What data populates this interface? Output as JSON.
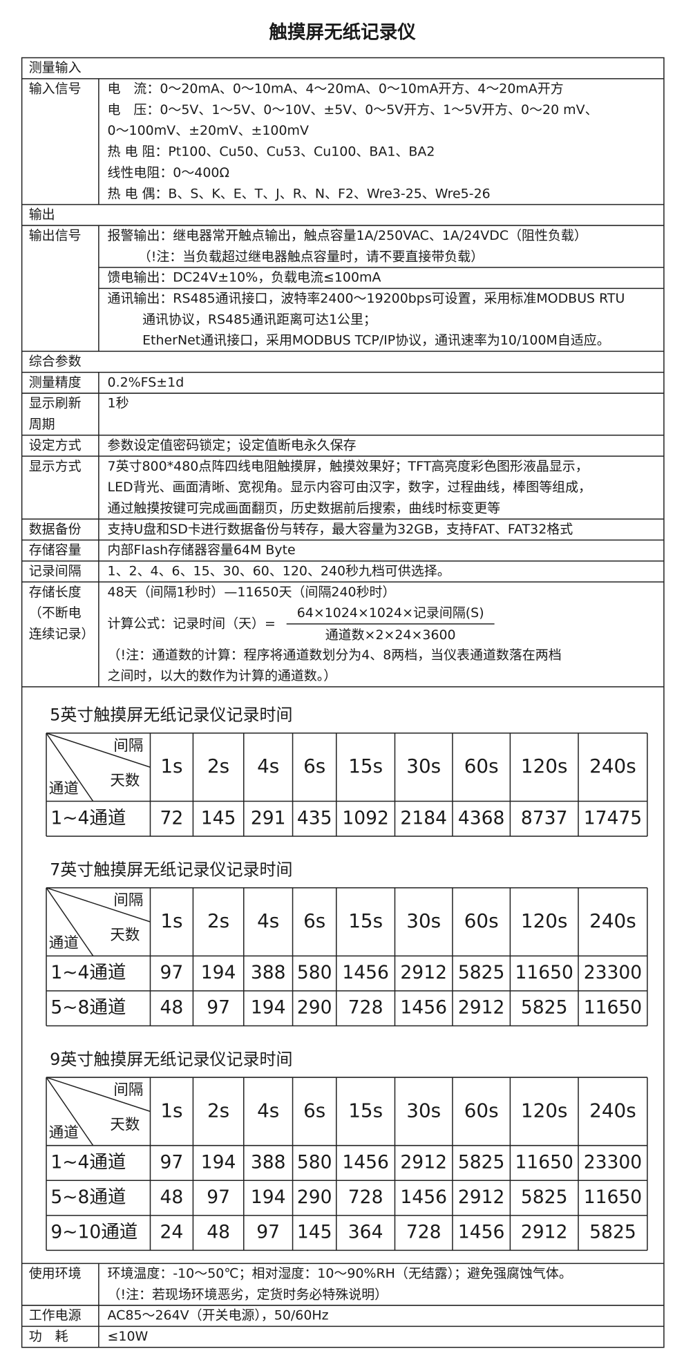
{
  "title": "触摸屏无纸记录仪",
  "spec_top": [
    {
      "section": "测量输入"
    },
    {
      "label": [
        "输入信号"
      ],
      "groups": [
        [
          "电　流：0～20mA、0～10mA、4～20mA、0～10mA开方、4～20mA开方",
          "电　压：0～5V、1～5V、0～10V、±5V、0～5V开方、1～5V开方、0～20 mV、",
          "0～100mV、±20mV、±100mV",
          "热 电 阻：Pt100、Cu50、Cu53、Cu100、BA1、BA2",
          "线性电阻：0～400Ω",
          "热 电 偶：B、S、K、E、T、J、R、N、F2、Wre3-25、Wre5-26"
        ]
      ]
    },
    {
      "section": "输出"
    },
    {
      "label": [
        "输出信号"
      ],
      "groups": [
        [
          "报警输出：继电器常开触点输出，触点容量1A/250VAC、1A/24VDC（阻性负载）",
          "（!注：当负载超过继电器触点容量时，请不要直接带负载）"
        ],
        [
          "馈电输出：DC24V±10%，负载电流≤100mA"
        ],
        [
          "通讯输出：RS485通讯接口，波特率2400～19200bps可设置，采用标准MODBUS RTU",
          "通讯协议，RS485通讯距离可达1公里；",
          "EtherNet通讯接口，采用MODBUS TCP/IP协议，通讯速率为10/100M自适应。"
        ]
      ]
    },
    {
      "section": "综合参数"
    },
    {
      "label": [
        "测量精度"
      ],
      "groups": [
        [
          "0.2%FS±1d"
        ]
      ]
    },
    {
      "label": [
        "显示刷新",
        "周期"
      ],
      "groups": [
        [
          "1秒"
        ]
      ]
    },
    {
      "label": [
        "设定方式"
      ],
      "groups": [
        [
          "参数设定值密码锁定；设定值断电永久保存"
        ]
      ]
    },
    {
      "label": [
        "显示方式"
      ],
      "groups": [
        [
          "7英寸800*480点阵四线电阻触摸屏，触摸效果好；TFT高亮度彩色图形液晶显示，",
          "LED背光、画面清晰、宽视角。显示内容可由汉字，数字，过程曲线，棒图等组成，",
          "通过触摸按键可完成画面翻页，历史数据前后搜索，曲线时标变更等"
        ]
      ]
    },
    {
      "label": [
        "数据备份"
      ],
      "groups": [
        [
          "支持U盘和SD卡进行数据备份与转存，最大容量为32GB，支持FAT、FAT32格式"
        ]
      ]
    },
    {
      "label": [
        "存储容量"
      ],
      "groups": [
        [
          "内部Flash存储器容量64M Byte"
        ]
      ]
    },
    {
      "label": [
        "记录间隔"
      ],
      "groups": [
        [
          "1、2、4、6、15、30、60、120、240秒九档可供选择。"
        ]
      ]
    },
    {
      "label": [
        "存储长度",
        "（不断电",
        "连续记录）"
      ],
      "groups": [
        [
          "48天（间隔1秒时）—11650天（间隔240秒时）",
          {
            "label": "计算公式：记录时间（天）=",
            "numerator": "64×1024×1024×记录间隔(S)",
            "denominator": "通道数×2×24×3600"
          },
          "（!注：通道数的计算：程序将通道数划分为4、8两档，当仪表通道数落在两档",
          "之间时，以大的数作为计算的通道数。）"
        ]
      ]
    }
  ],
  "tables": [
    {
      "title": "5英寸触摸屏无纸记录仪记录时间",
      "corner_top": "间隔",
      "corner_middle": "天数",
      "corner_bottom": "通道",
      "headers": [
        "1s",
        "2s",
        "4s",
        "6s",
        "15s",
        "30s",
        "60s",
        "120s",
        "240s"
      ],
      "rows": [
        {
          "label": "1~4通道",
          "values": [
            72,
            145,
            291,
            435,
            1092,
            2184,
            4368,
            8737,
            17475
          ]
        }
      ]
    },
    {
      "title": "7英寸触摸屏无纸记录仪记录时间",
      "corner_top": "间隔",
      "corner_middle": "天数",
      "corner_bottom": "通道",
      "headers": [
        "1s",
        "2s",
        "4s",
        "6s",
        "15s",
        "30s",
        "60s",
        "120s",
        "240s"
      ],
      "rows": [
        {
          "label": "1~4通道",
          "values": [
            97,
            194,
            388,
            580,
            1456,
            2912,
            5825,
            11650,
            23300
          ]
        },
        {
          "label": "5~8通道",
          "values": [
            48,
            97,
            194,
            290,
            728,
            1456,
            2912,
            5825,
            11650
          ]
        }
      ]
    },
    {
      "title": "9英寸触摸屏无纸记录仪记录时间",
      "corner_top": "间隔",
      "corner_middle": "天数",
      "corner_bottom": "通道",
      "headers": [
        "1s",
        "2s",
        "4s",
        "6s",
        "15s",
        "30s",
        "60s",
        "120s",
        "240s"
      ],
      "rows": [
        {
          "label": "1~4通道",
          "values": [
            97,
            194,
            388,
            580,
            1456,
            2912,
            5825,
            11650,
            23300
          ]
        },
        {
          "label": "5~8通道",
          "values": [
            48,
            97,
            194,
            290,
            728,
            1456,
            2912,
            5825,
            11650
          ]
        },
        {
          "label": "9~10通道",
          "values": [
            24,
            48,
            97,
            145,
            364,
            728,
            1456,
            2912,
            5825
          ]
        }
      ]
    }
  ],
  "spec_bottom": [
    {
      "label": [
        "使用环境"
      ],
      "groups": [
        [
          "环境温度：-10～50℃；相对湿度：10～90%RH（无结露）；避免强腐蚀气体。",
          "（!注：若现场环境恶劣，定货时务必特殊说明）"
        ]
      ]
    },
    {
      "label": [
        "工作电源"
      ],
      "groups": [
        [
          "AC85～264V（开关电源），50/60Hz"
        ]
      ]
    },
    {
      "label": [
        "功　耗"
      ],
      "groups": [
        [
          "≤10W"
        ]
      ]
    }
  ]
}
